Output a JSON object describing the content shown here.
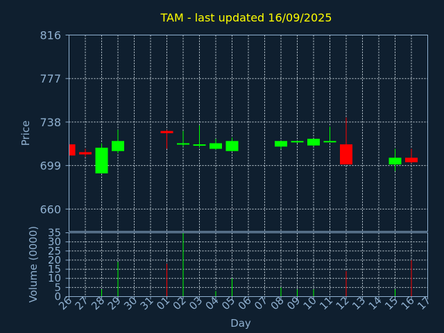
{
  "chart_data": {
    "title": "TAM - last updated 16/09/2025",
    "price_panel": {
      "type": "candlestick",
      "ylabel": "Price",
      "ylim": [
        640,
        816
      ],
      "yticks": [
        "816",
        "777",
        "738",
        "699",
        "660"
      ],
      "grid": true
    },
    "volume_panel": {
      "type": "bar",
      "ylabel": "Volume (0000)",
      "ylim": [
        0,
        35
      ],
      "yticks": [
        "35",
        "30",
        "25",
        "20",
        "15",
        "10",
        "5",
        "0"
      ],
      "grid": true
    },
    "xlabel": "Day",
    "days": [
      "26",
      "27",
      "28",
      "29",
      "30",
      "31",
      "01",
      "02",
      "03",
      "04",
      "05",
      "06",
      "07",
      "08",
      "09",
      "10",
      "11",
      "12",
      "13",
      "14",
      "15",
      "16",
      "17"
    ],
    "candles": [
      {
        "day": "26",
        "open": 718,
        "high": 718,
        "low": 706,
        "close": 708
      },
      {
        "day": "27",
        "open": 711,
        "high": 714,
        "low": 707,
        "close": 709
      },
      {
        "day": "28",
        "open": 692,
        "high": 719,
        "low": 692,
        "close": 715
      },
      {
        "day": "29",
        "open": 712,
        "high": 731,
        "low": 710,
        "close": 721
      },
      {
        "day": "01",
        "open": 730,
        "high": 731,
        "low": 714,
        "close": 728
      },
      {
        "day": "02",
        "open": 718,
        "high": 730,
        "low": 716,
        "close": 719
      },
      {
        "day": "03",
        "open": 717,
        "high": 735,
        "low": 715,
        "close": 718
      },
      {
        "day": "04",
        "open": 714,
        "high": 723,
        "low": 713,
        "close": 719
      },
      {
        "day": "05",
        "open": 712,
        "high": 724,
        "low": 712,
        "close": 721
      },
      {
        "day": "08",
        "open": 716,
        "high": 721,
        "low": 714,
        "close": 721
      },
      {
        "day": "09",
        "open": 720,
        "high": 721,
        "low": 719,
        "close": 721
      },
      {
        "day": "10",
        "open": 717,
        "high": 723,
        "low": 716,
        "close": 723
      },
      {
        "day": "11",
        "open": 720,
        "high": 734,
        "low": 720,
        "close": 721
      },
      {
        "day": "12",
        "open": 718,
        "high": 742,
        "low": 700,
        "close": 700
      },
      {
        "day": "15",
        "open": 700,
        "high": 714,
        "low": 694,
        "close": 706
      },
      {
        "day": "16",
        "open": 706,
        "high": 714,
        "low": 701,
        "close": 702
      }
    ],
    "volumes": [
      {
        "day": "26",
        "value": 0
      },
      {
        "day": "27",
        "value": 0
      },
      {
        "day": "28",
        "value": 4
      },
      {
        "day": "29",
        "value": 19
      },
      {
        "day": "01",
        "value": 18
      },
      {
        "day": "02",
        "value": 35
      },
      {
        "day": "03",
        "value": 0
      },
      {
        "day": "04",
        "value": 3
      },
      {
        "day": "05",
        "value": 10
      },
      {
        "day": "08",
        "value": 5
      },
      {
        "day": "09",
        "value": 4
      },
      {
        "day": "10",
        "value": 4
      },
      {
        "day": "11",
        "value": 0
      },
      {
        "day": "12",
        "value": 14
      },
      {
        "day": "15",
        "value": 4
      },
      {
        "day": "16",
        "value": 20
      }
    ],
    "colors": {
      "background": "#0f1f2f",
      "title": "#ffff00",
      "axis_text": "#8fb0d0",
      "frame": "#8fb0d0",
      "grid": "#c8d4dc",
      "up": "#00ff00",
      "down": "#ff0000"
    }
  }
}
